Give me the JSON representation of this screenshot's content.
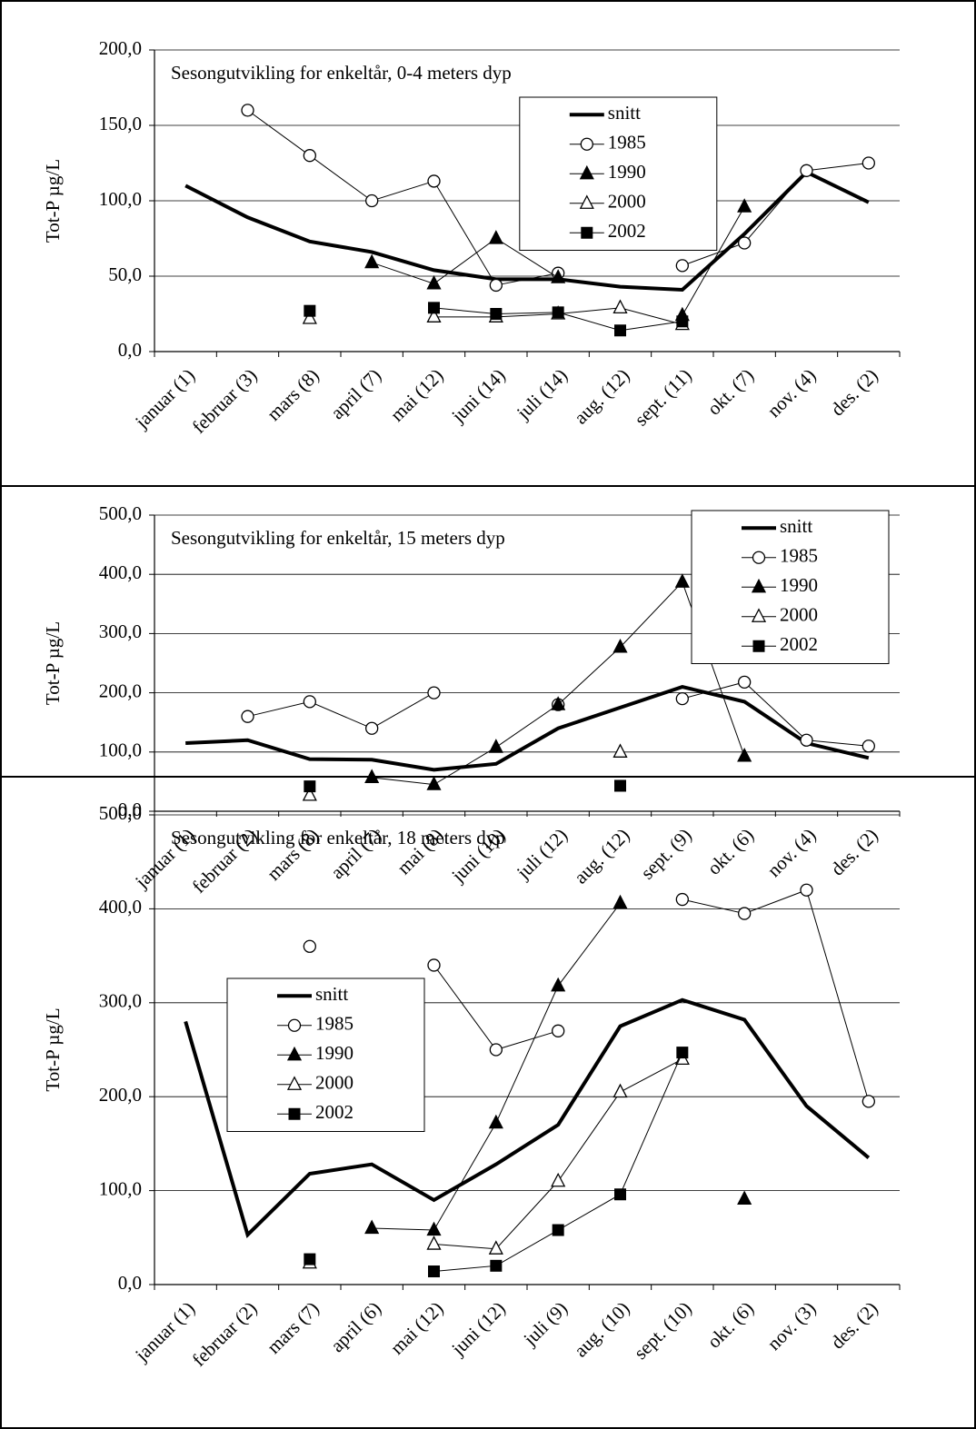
{
  "chart_data": [
    {
      "type": "line",
      "title": "Sesongutvikling for enkeltår, 0-4 meters dyp",
      "y_label": "Tot-P µg/L",
      "categories": [
        "januar (1)",
        "februar (3)",
        "mars (8)",
        "april (7)",
        "mai (12)",
        "juni (14)",
        "juli (14)",
        "aug. (12)",
        "sept. (11)",
        "okt. (7)",
        "nov. (4)",
        "des. (2)"
      ],
      "ylim": [
        0,
        200
      ],
      "yticks": [
        {
          "value": 0,
          "label": "0,0"
        },
        {
          "value": 50,
          "label": "50,0"
        },
        {
          "value": 100,
          "label": "100,0"
        },
        {
          "value": 150,
          "label": "150,0"
        },
        {
          "value": 200,
          "label": "200,0"
        }
      ],
      "grid": true,
      "legend": "upper center",
      "series": [
        {
          "name": "snitt",
          "color": "#000000",
          "marker": "none",
          "linewidth": 4,
          "values": [
            110,
            89,
            73,
            66,
            54,
            48,
            48,
            43,
            41,
            78,
            119,
            99
          ]
        },
        {
          "name": "1985",
          "color": "#000000",
          "marker": "circle-open",
          "linewidth": 1,
          "values": [
            null,
            160,
            130,
            100,
            113,
            44,
            52,
            null,
            57,
            72,
            120,
            125
          ]
        },
        {
          "name": "1990",
          "color": "#000000",
          "marker": "triangle-filled",
          "linewidth": 1,
          "values": [
            null,
            null,
            null,
            59,
            45,
            75,
            49,
            null,
            24,
            96,
            null,
            null
          ]
        },
        {
          "name": "2000",
          "color": "#000000",
          "marker": "triangle-open",
          "linewidth": 1,
          "values": [
            null,
            null,
            22,
            null,
            23,
            23,
            25,
            29,
            18,
            null,
            null,
            null
          ]
        },
        {
          "name": "2002",
          "color": "#000000",
          "marker": "square-filled",
          "linewidth": 1,
          "values": [
            null,
            null,
            27,
            null,
            29,
            25,
            26,
            14,
            20,
            null,
            null,
            null
          ]
        }
      ]
    },
    {
      "type": "line",
      "title": "Sesongutvikling for enkeltår, 15 meters dyp",
      "y_label": "Tot-P µg/L",
      "categories": [
        "januar (1)",
        "februar (2)",
        "mars (8)",
        "april (7)",
        "mai (8)",
        "juni (10)",
        "juli (12)",
        "aug. (12)",
        "sept. (9)",
        "okt. (6)",
        "nov. (4)",
        "des. (2)"
      ],
      "ylim": [
        0,
        500
      ],
      "yticks": [
        {
          "value": 0,
          "label": "0,0"
        },
        {
          "value": 100,
          "label": "100,0"
        },
        {
          "value": 200,
          "label": "200,0"
        },
        {
          "value": 300,
          "label": "300,0"
        },
        {
          "value": 400,
          "label": "400,0"
        },
        {
          "value": 500,
          "label": "500,0"
        }
      ],
      "grid": true,
      "legend": "upper right",
      "series": [
        {
          "name": "snitt",
          "color": "#000000",
          "marker": "none",
          "linewidth": 4,
          "values": [
            115,
            120,
            88,
            87,
            70,
            80,
            140,
            175,
            210,
            185,
            115,
            90
          ]
        },
        {
          "name": "1985",
          "color": "#000000",
          "marker": "circle-open",
          "linewidth": 1,
          "values": [
            null,
            160,
            185,
            140,
            200,
            null,
            180,
            null,
            190,
            218,
            120,
            110
          ]
        },
        {
          "name": "1990",
          "color": "#000000",
          "marker": "triangle-filled",
          "linewidth": 1,
          "values": [
            null,
            null,
            null,
            57,
            45,
            108,
            180,
            277,
            387,
            93,
            null,
            null
          ]
        },
        {
          "name": "2000",
          "color": "#000000",
          "marker": "triangle-open",
          "linewidth": 1,
          "values": [
            null,
            null,
            27,
            null,
            null,
            null,
            null,
            100,
            null,
            null,
            null,
            null
          ]
        },
        {
          "name": "2002",
          "color": "#000000",
          "marker": "square-filled",
          "linewidth": 1,
          "values": [
            null,
            null,
            42,
            null,
            null,
            null,
            null,
            43,
            null,
            null,
            null,
            null
          ]
        }
      ]
    },
    {
      "type": "line",
      "title": "Sesongutvikling for enkeltår, 18 meters dyp",
      "y_label": "Tot-P µg/L",
      "categories": [
        "januar (1)",
        "februar (2)",
        "mars (7)",
        "april (6)",
        "mai (12)",
        "juni (12)",
        "juli (9)",
        "aug. (10)",
        "sept. (10)",
        "okt. (6)",
        "nov. (3)",
        "des. (2)"
      ],
      "ylim": [
        0,
        500
      ],
      "yticks": [
        {
          "value": 0,
          "label": "0,0"
        },
        {
          "value": 100,
          "label": "100,0"
        },
        {
          "value": 200,
          "label": "200,0"
        },
        {
          "value": 300,
          "label": "300,0"
        },
        {
          "value": 400,
          "label": "400,0"
        },
        {
          "value": 500,
          "label": "500,0"
        }
      ],
      "grid": true,
      "legend": "upper left",
      "series": [
        {
          "name": "snitt",
          "color": "#000000",
          "marker": "none",
          "linewidth": 4,
          "values": [
            280,
            53,
            118,
            128,
            90,
            128,
            170,
            275,
            303,
            282,
            190,
            135
          ]
        },
        {
          "name": "1985",
          "color": "#000000",
          "marker": "circle-open",
          "linewidth": 1,
          "values": [
            null,
            null,
            360,
            null,
            340,
            250,
            270,
            null,
            410,
            395,
            420,
            195
          ]
        },
        {
          "name": "1990",
          "color": "#000000",
          "marker": "triangle-filled",
          "linewidth": 1,
          "values": [
            null,
            null,
            null,
            60,
            58,
            172,
            318,
            406,
            null,
            91,
            null,
            null
          ]
        },
        {
          "name": "2000",
          "color": "#000000",
          "marker": "triangle-open",
          "linewidth": 1,
          "values": [
            null,
            null,
            23,
            null,
            43,
            38,
            110,
            205,
            240,
            null,
            null,
            null
          ]
        },
        {
          "name": "2002",
          "color": "#000000",
          "marker": "square-filled",
          "linewidth": 1,
          "values": [
            null,
            null,
            27,
            null,
            14,
            20,
            58,
            96,
            247,
            null,
            null,
            null
          ]
        }
      ]
    }
  ]
}
